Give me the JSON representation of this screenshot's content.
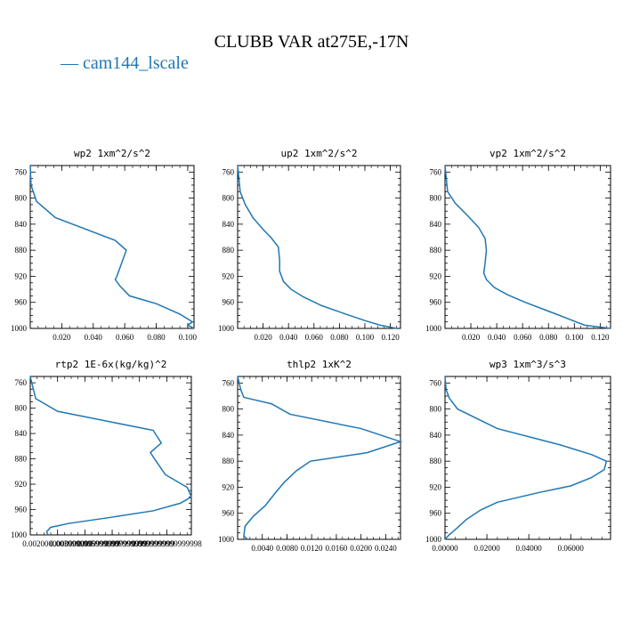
{
  "figure": {
    "title": "CLUBB VAR at275E,-17N",
    "legend_label": "cam144_lscale",
    "series_color": "#1f77b4"
  },
  "chart_data": [
    {
      "type": "line",
      "title": "wp2  1xm^2/s^2",
      "xlim": [
        0.0,
        0.104
      ],
      "ylim": [
        1000,
        750
      ],
      "x_ticks": [
        0.02,
        0.04,
        0.06,
        0.08,
        0.1
      ],
      "x_tick_labels": [
        "0.020",
        "0.040",
        "0.060",
        "0.080",
        "0.100"
      ],
      "y_ticks": [
        760,
        800,
        840,
        880,
        920,
        960,
        1000
      ],
      "y_tick_labels": [
        "760",
        "800",
        "840",
        "880",
        "920",
        "960",
        "1000"
      ],
      "points": [
        [
          0.0,
          750
        ],
        [
          0.0005,
          780
        ],
        [
          0.004,
          805
        ],
        [
          0.016,
          830
        ],
        [
          0.054,
          865
        ],
        [
          0.061,
          880
        ],
        [
          0.058,
          900
        ],
        [
          0.055,
          920
        ],
        [
          0.054,
          925
        ],
        [
          0.057,
          935
        ],
        [
          0.063,
          950
        ],
        [
          0.08,
          962
        ],
        [
          0.095,
          978
        ],
        [
          0.103,
          990
        ],
        [
          0.1,
          995
        ],
        [
          0.104,
          1000
        ]
      ]
    },
    {
      "type": "line",
      "title": "up2  1xm^2/s^2",
      "xlim": [
        0.0,
        0.128
      ],
      "ylim": [
        1000,
        750
      ],
      "x_ticks": [
        0.02,
        0.04,
        0.06,
        0.08,
        0.1,
        0.12
      ],
      "x_tick_labels": [
        "0.020",
        "0.040",
        "0.060",
        "0.080",
        "0.100",
        "0.120"
      ],
      "y_ticks": [
        760,
        800,
        840,
        880,
        920,
        960,
        1000
      ],
      "y_tick_labels": [
        "760",
        "800",
        "840",
        "880",
        "920",
        "960",
        "1000"
      ],
      "points": [
        [
          0.0,
          750
        ],
        [
          0.002,
          790
        ],
        [
          0.006,
          810
        ],
        [
          0.012,
          830
        ],
        [
          0.02,
          848
        ],
        [
          0.026,
          860
        ],
        [
          0.032,
          875
        ],
        [
          0.033,
          895
        ],
        [
          0.033,
          912
        ],
        [
          0.036,
          928
        ],
        [
          0.042,
          940
        ],
        [
          0.052,
          952
        ],
        [
          0.066,
          965
        ],
        [
          0.085,
          978
        ],
        [
          0.1,
          988
        ],
        [
          0.112,
          995
        ],
        [
          0.125,
          1000
        ]
      ]
    },
    {
      "type": "line",
      "title": "vp2  1xm^2/s^2",
      "xlim": [
        0.0,
        0.128
      ],
      "ylim": [
        1000,
        750
      ],
      "x_ticks": [
        0.02,
        0.04,
        0.06,
        0.08,
        0.1,
        0.12
      ],
      "x_tick_labels": [
        "0.020",
        "0.040",
        "0.060",
        "0.080",
        "0.100",
        "0.120"
      ],
      "y_ticks": [
        760,
        800,
        840,
        880,
        920,
        960,
        1000
      ],
      "y_tick_labels": [
        "760",
        "800",
        "840",
        "880",
        "920",
        "960",
        "1000"
      ],
      "points": [
        [
          0.0,
          750
        ],
        [
          0.002,
          790
        ],
        [
          0.008,
          808
        ],
        [
          0.018,
          828
        ],
        [
          0.026,
          845
        ],
        [
          0.031,
          862
        ],
        [
          0.032,
          880
        ],
        [
          0.031,
          900
        ],
        [
          0.03,
          915
        ],
        [
          0.032,
          925
        ],
        [
          0.038,
          937
        ],
        [
          0.048,
          948
        ],
        [
          0.062,
          960
        ],
        [
          0.078,
          972
        ],
        [
          0.095,
          985
        ],
        [
          0.108,
          995
        ],
        [
          0.128,
          1000
        ]
      ]
    },
    {
      "type": "line",
      "title": "rtp2  1E-6x(kg/kg)^2",
      "xlim": [
        0.0,
        0.0118
      ],
      "ylim": [
        1000,
        750
      ],
      "x_ticks": [
        0.002,
        0.004,
        0.006,
        0.008,
        0.01
      ],
      "x_tick_labels": [
        "0.0020000000000000",
        "0.0039999999999999",
        "0.0059999999999999",
        "0.0079999999999999",
        "0.0099999999999998"
      ],
      "y_ticks": [
        760,
        800,
        840,
        880,
        920,
        960,
        1000
      ],
      "y_tick_labels": [
        "760",
        "800",
        "840",
        "880",
        "920",
        "960",
        "1000"
      ],
      "points": [
        [
          0.0,
          750
        ],
        [
          0.0002,
          768
        ],
        [
          0.0004,
          785
        ],
        [
          0.002,
          805
        ],
        [
          0.009,
          835
        ],
        [
          0.0096,
          855
        ],
        [
          0.0088,
          870
        ],
        [
          0.0091,
          880
        ],
        [
          0.0099,
          905
        ],
        [
          0.0115,
          925
        ],
        [
          0.0118,
          940
        ],
        [
          0.011,
          950
        ],
        [
          0.009,
          962
        ],
        [
          0.006,
          972
        ],
        [
          0.0028,
          982
        ],
        [
          0.0015,
          988
        ],
        [
          0.0012,
          995
        ],
        [
          0.0013,
          1000
        ]
      ]
    },
    {
      "type": "line",
      "title": "thlp2  1xK^2",
      "xlim": [
        0.0,
        0.0264
      ],
      "ylim": [
        1000,
        750
      ],
      "x_ticks": [
        0.004,
        0.008,
        0.012,
        0.016,
        0.02,
        0.024
      ],
      "x_tick_labels": [
        "0.0040",
        "0.0080",
        "0.0120",
        "0.0160",
        "0.0200",
        "0.0240"
      ],
      "y_ticks": [
        760,
        800,
        840,
        880,
        920,
        960,
        1000
      ],
      "y_tick_labels": [
        "760",
        "800",
        "840",
        "880",
        "920",
        "960",
        "1000"
      ],
      "points": [
        [
          0.0,
          750
        ],
        [
          0.0005,
          770
        ],
        [
          0.001,
          782
        ],
        [
          0.0055,
          792
        ],
        [
          0.0085,
          808
        ],
        [
          0.02,
          830
        ],
        [
          0.0264,
          850
        ],
        [
          0.021,
          867
        ],
        [
          0.0118,
          880
        ],
        [
          0.0095,
          895
        ],
        [
          0.0075,
          913
        ],
        [
          0.006,
          930
        ],
        [
          0.0045,
          948
        ],
        [
          0.0025,
          965
        ],
        [
          0.0012,
          980
        ],
        [
          0.001,
          995
        ],
        [
          0.0016,
          1000
        ]
      ]
    },
    {
      "type": "line",
      "title": "wp3  1xm^3/s^3",
      "xlim": [
        0.0,
        0.079
      ],
      "ylim": [
        1000,
        750
      ],
      "x_ticks": [
        0.0,
        0.02,
        0.04,
        0.06
      ],
      "x_tick_labels": [
        "0.00000",
        "0.02000",
        "0.04000",
        "0.06000"
      ],
      "y_ticks": [
        760,
        800,
        840,
        880,
        920,
        960,
        1000
      ],
      "y_tick_labels": [
        "760",
        "800",
        "840",
        "880",
        "920",
        "960",
        "1000"
      ],
      "points": [
        [
          0.0,
          750
        ],
        [
          0.0005,
          770
        ],
        [
          0.002,
          783
        ],
        [
          0.006,
          800
        ],
        [
          0.025,
          830
        ],
        [
          0.055,
          855
        ],
        [
          0.07,
          870
        ],
        [
          0.077,
          880
        ],
        [
          0.076,
          893
        ],
        [
          0.07,
          905
        ],
        [
          0.06,
          918
        ],
        [
          0.045,
          928
        ],
        [
          0.025,
          943
        ],
        [
          0.017,
          955
        ],
        [
          0.01,
          970
        ],
        [
          0.006,
          982
        ],
        [
          0.002,
          993
        ],
        [
          0.0,
          1000
        ]
      ]
    }
  ]
}
